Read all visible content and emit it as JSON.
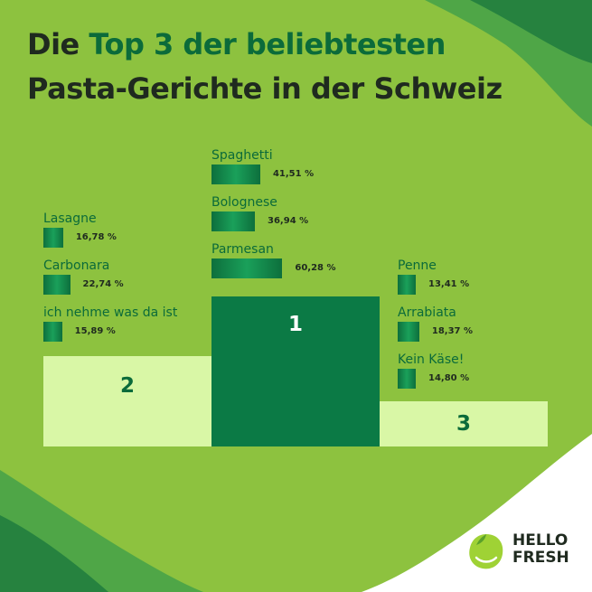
{
  "title": {
    "prefix": "Die ",
    "highlight": "Top 3 der beliebtesten",
    "line2": "Pasta-Gerichte in der Schweiz"
  },
  "colors": {
    "background": "#8dc23f",
    "accent": "#0b6b3a",
    "podium_light": "#d9f7a6",
    "podium_dark": "#0b7a45",
    "title_dark": "#1f2a1f"
  },
  "chart_data": {
    "type": "bar",
    "title": "Die Top 3 der beliebtesten Pasta-Gerichte in der Schweiz",
    "unit": "%",
    "groups": [
      {
        "rank": "2",
        "items": [
          {
            "label": "Lasagne",
            "value": 16.78,
            "display": "16,78 %"
          },
          {
            "label": "Carbonara",
            "value": 22.74,
            "display": "22,74 %"
          },
          {
            "label": "ich nehme was da ist",
            "value": 15.89,
            "display": "15,89 %"
          }
        ]
      },
      {
        "rank": "1",
        "items": [
          {
            "label": "Spaghetti",
            "value": 41.51,
            "display": "41,51 %"
          },
          {
            "label": "Bolognese",
            "value": 36.94,
            "display": "36,94 %"
          },
          {
            "label": "Parmesan",
            "value": 60.28,
            "display": "60,28 %"
          }
        ]
      },
      {
        "rank": "3",
        "items": [
          {
            "label": "Penne",
            "value": 13.41,
            "display": "13,41 %"
          },
          {
            "label": "Arrabiata",
            "value": 18.37,
            "display": "18,37 %"
          },
          {
            "label": "Kein Käse!",
            "value": 14.8,
            "display": "14,80 %"
          }
        ]
      }
    ]
  },
  "logo": {
    "line1": "HELLO",
    "line2": "FRESH",
    "icon": "lime-icon"
  }
}
